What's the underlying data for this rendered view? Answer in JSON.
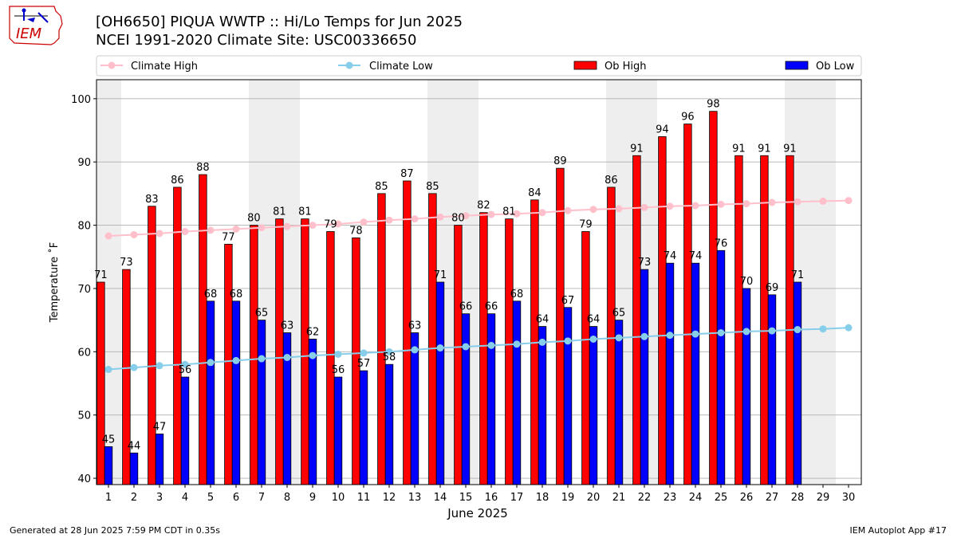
{
  "header": {
    "title_line1": "[OH6650] PIQUA WWTP :: Hi/Lo Temps for Jun 2025",
    "title_line2": "NCEI 1991-2020 Climate Site: USC00336650",
    "logo_text": "IEM"
  },
  "footer": {
    "generated": "Generated at 28 Jun 2025 7:59 PM CDT in 0.35s",
    "app": "IEM Autoplot App #17"
  },
  "chart_data": {
    "type": "bar",
    "xlabel": "June 2025",
    "ylabel": "Temperature ˚F",
    "ylim": [
      39,
      103
    ],
    "yticks": [
      40,
      50,
      60,
      70,
      80,
      90,
      100
    ],
    "grid": true,
    "legend_position": "top",
    "categories": [
      "1",
      "2",
      "3",
      "4",
      "5",
      "6",
      "7",
      "8",
      "9",
      "10",
      "11",
      "12",
      "13",
      "14",
      "15",
      "16",
      "17",
      "18",
      "19",
      "20",
      "21",
      "22",
      "23",
      "24",
      "25",
      "26",
      "27",
      "28",
      "29",
      "30"
    ],
    "weekend_days": [
      1,
      7,
      8,
      14,
      15,
      21,
      22,
      28,
      29
    ],
    "series": [
      {
        "name": "Ob High",
        "kind": "bar",
        "color": "#ff0000",
        "values": [
          71,
          73,
          83,
          86,
          88,
          77,
          80,
          81,
          81,
          79,
          78,
          85,
          87,
          85,
          80,
          82,
          81,
          84,
          89,
          79,
          86,
          91,
          94,
          96,
          98,
          91,
          91,
          91,
          null,
          null
        ]
      },
      {
        "name": "Ob Low",
        "kind": "bar",
        "color": "#0000ff",
        "values": [
          45,
          44,
          47,
          56,
          68,
          68,
          65,
          63,
          62,
          56,
          57,
          58,
          63,
          71,
          66,
          66,
          68,
          64,
          67,
          64,
          65,
          73,
          74,
          74,
          76,
          70,
          69,
          71,
          null,
          null
        ]
      },
      {
        "name": "Climate High",
        "kind": "line",
        "color": "#ffc0cb",
        "values": [
          78.3,
          78.5,
          78.7,
          79.0,
          79.2,
          79.4,
          79.6,
          79.8,
          80.0,
          80.2,
          80.5,
          80.8,
          81.0,
          81.3,
          81.5,
          81.7,
          81.8,
          82.0,
          82.3,
          82.5,
          82.6,
          82.8,
          83.0,
          83.1,
          83.3,
          83.4,
          83.6,
          83.7,
          83.8,
          83.9
        ]
      },
      {
        "name": "Climate Low",
        "kind": "line",
        "color": "#87ceeb",
        "values": [
          57.2,
          57.5,
          57.8,
          58.0,
          58.3,
          58.6,
          58.9,
          59.1,
          59.4,
          59.6,
          59.8,
          60.0,
          60.3,
          60.6,
          60.8,
          61.0,
          61.2,
          61.5,
          61.7,
          62.0,
          62.2,
          62.4,
          62.6,
          62.8,
          63.0,
          63.2,
          63.3,
          63.5,
          63.6,
          63.8
        ]
      }
    ]
  }
}
